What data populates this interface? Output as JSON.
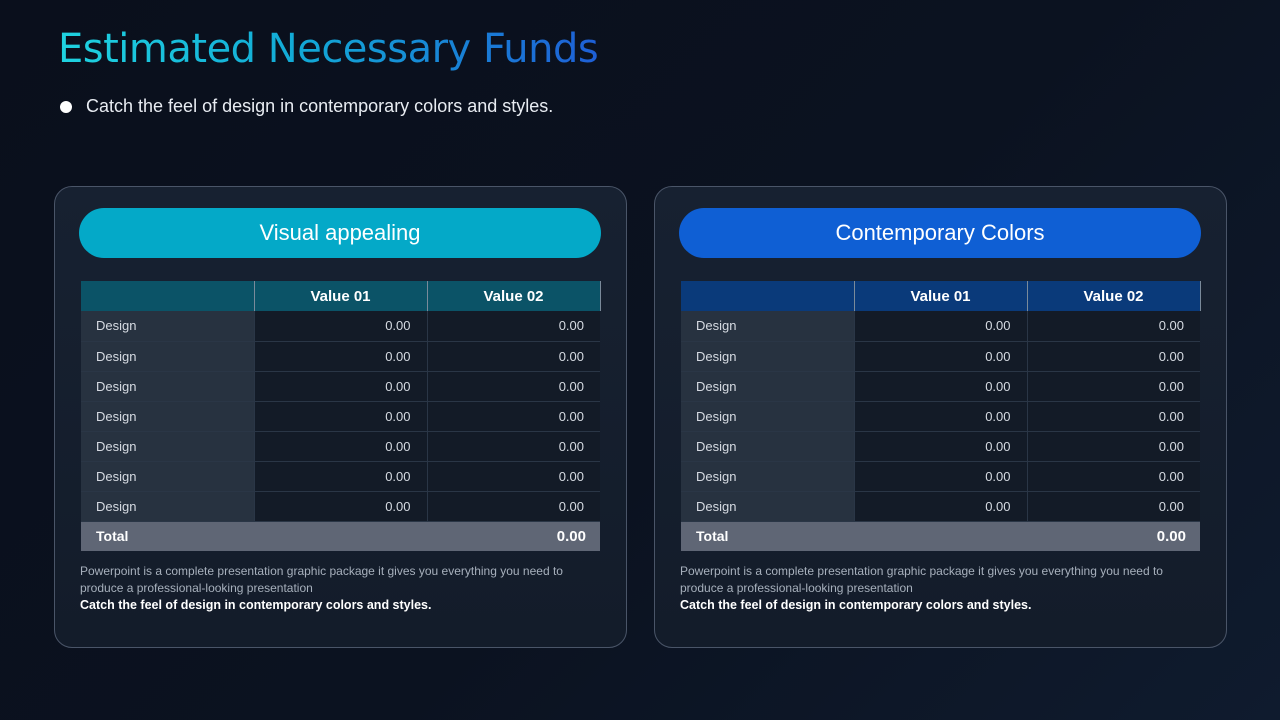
{
  "slide": {
    "title": "Estimated Necessary Funds",
    "bullet": "Catch the feel of design in contemporary colors and styles."
  },
  "colors": {
    "left_accent": "#04a9c8",
    "right_accent": "#0f5fd4",
    "left_header": "#0b5367",
    "right_header": "#0a3a7a",
    "total_row": "#5f6675"
  },
  "cards": [
    {
      "heading": "Visual appealing",
      "columns": [
        "",
        "Value 01",
        "Value 02"
      ],
      "rows": [
        {
          "label": "Design",
          "v1": "0.00",
          "v2": "0.00"
        },
        {
          "label": "Design",
          "v1": "0.00",
          "v2": "0.00"
        },
        {
          "label": "Design",
          "v1": "0.00",
          "v2": "0.00"
        },
        {
          "label": "Design",
          "v1": "0.00",
          "v2": "0.00"
        },
        {
          "label": "Design",
          "v1": "0.00",
          "v2": "0.00"
        },
        {
          "label": "Design",
          "v1": "0.00",
          "v2": "0.00"
        },
        {
          "label": "Design",
          "v1": "0.00",
          "v2": "0.00"
        }
      ],
      "total_label": "Total",
      "total_value": "0.00",
      "description": "Powerpoint is a complete presentation graphic package it gives you everything you need to produce a professional-looking presentation",
      "tagline": "Catch the feel of design in contemporary colors and styles."
    },
    {
      "heading": "Contemporary Colors",
      "columns": [
        "",
        "Value 01",
        "Value 02"
      ],
      "rows": [
        {
          "label": "Design",
          "v1": "0.00",
          "v2": "0.00"
        },
        {
          "label": "Design",
          "v1": "0.00",
          "v2": "0.00"
        },
        {
          "label": "Design",
          "v1": "0.00",
          "v2": "0.00"
        },
        {
          "label": "Design",
          "v1": "0.00",
          "v2": "0.00"
        },
        {
          "label": "Design",
          "v1": "0.00",
          "v2": "0.00"
        },
        {
          "label": "Design",
          "v1": "0.00",
          "v2": "0.00"
        },
        {
          "label": "Design",
          "v1": "0.00",
          "v2": "0.00"
        }
      ],
      "total_label": "Total",
      "total_value": "0.00",
      "description": "Powerpoint is a complete presentation graphic package it gives you everything you need to produce a professional-looking presentation",
      "tagline": "Catch the feel of design in contemporary colors and styles."
    }
  ]
}
